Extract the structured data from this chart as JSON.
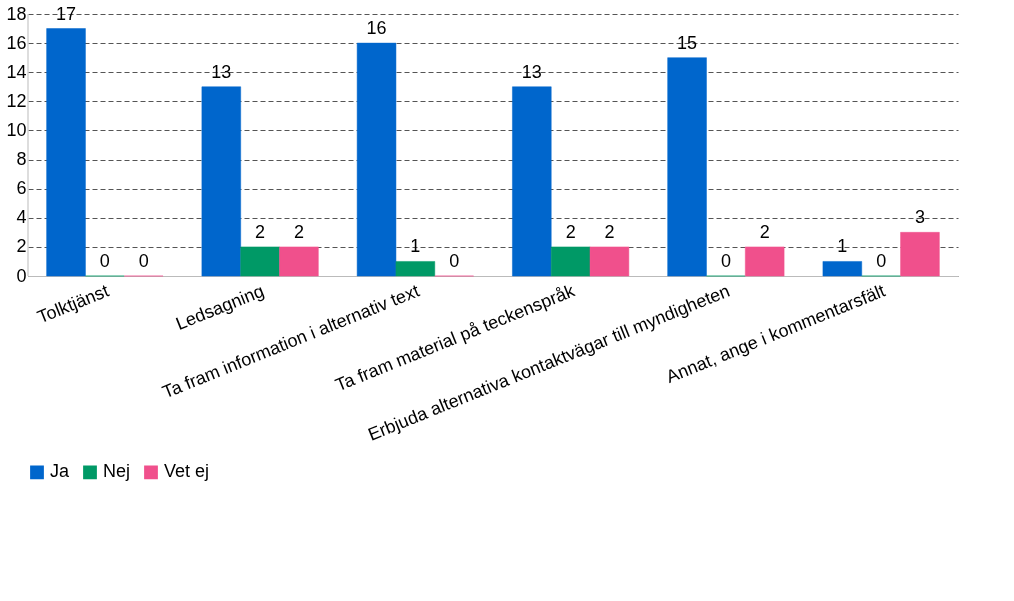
{
  "chart_data": {
    "type": "bar",
    "categories": [
      "Tolktjänst",
      "Ledsagning",
      "Ta fram information i alternativ text",
      "Ta fram material på teckenspråk",
      "Erbjuda alternativa kontaktvägar till myndigheten",
      "Annat, ange i kommentarsfält"
    ],
    "series": [
      {
        "name": "Ja",
        "color": "#0066cc",
        "values": [
          17,
          13,
          16,
          13,
          15,
          1
        ]
      },
      {
        "name": "Nej",
        "color": "#009966",
        "values": [
          0,
          2,
          1,
          2,
          0,
          0
        ]
      },
      {
        "name": "Vet ej",
        "color": "#f0508c",
        "values": [
          0,
          2,
          0,
          2,
          2,
          3
        ]
      }
    ],
    "ylim": [
      0,
      18
    ],
    "yticks": [
      0,
      2,
      4,
      6,
      8,
      10,
      12,
      14,
      16,
      18
    ],
    "grid": "y",
    "legend": "bottom",
    "data_labels": true
  }
}
